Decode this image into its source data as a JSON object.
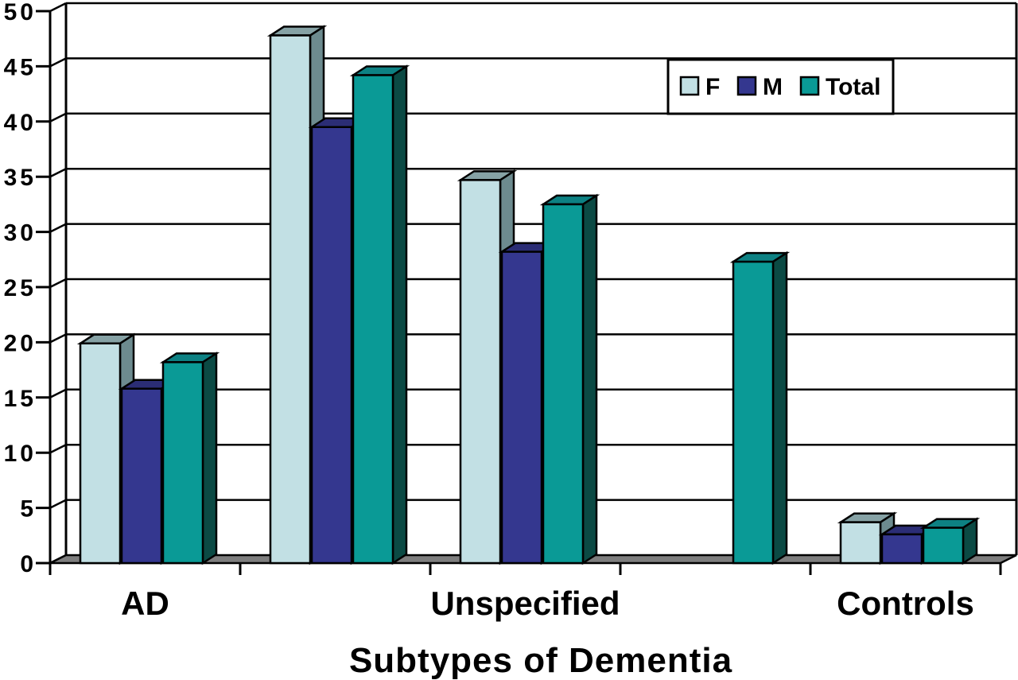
{
  "chart_data": {
    "type": "bar",
    "projection": "3d-clustered",
    "title": "",
    "xlabel": "Subtypes of Dementia",
    "ylabel": "",
    "ylim": [
      0,
      50
    ],
    "ytick_step": 5,
    "ytick_labels": [
      "0",
      "5",
      "10",
      "15",
      "20",
      "25",
      "30",
      "35",
      "40",
      "45",
      "50"
    ],
    "categories": [
      "AD",
      "",
      "Unspecified",
      "",
      "Controls"
    ],
    "series": [
      {
        "name": "F",
        "color": "#C2E0E4",
        "top_color": "#86A2A5",
        "side_color": "#6D8B8F",
        "values": [
          19.9,
          47.8,
          34.7,
          null,
          3.7
        ]
      },
      {
        "name": "M",
        "color": "#34378F",
        "top_color": "#2B2D75",
        "side_color": "#1E2058",
        "values": [
          15.8,
          39.5,
          28.2,
          null,
          2.6
        ]
      },
      {
        "name": "Total",
        "color": "#0A9A96",
        "top_color": "#0D8183",
        "side_color": "#0B4A44",
        "values": [
          18.2,
          44.2,
          32.5,
          27.3,
          3.2
        ]
      }
    ],
    "legend": {
      "position": "top-right",
      "entries": [
        "F",
        "M",
        "Total"
      ]
    },
    "grid": true,
    "floor_color": "#7E7E7E",
    "wall_color": "#FFFFFF",
    "line_color": "#000000",
    "background": "#FFFFFF"
  }
}
